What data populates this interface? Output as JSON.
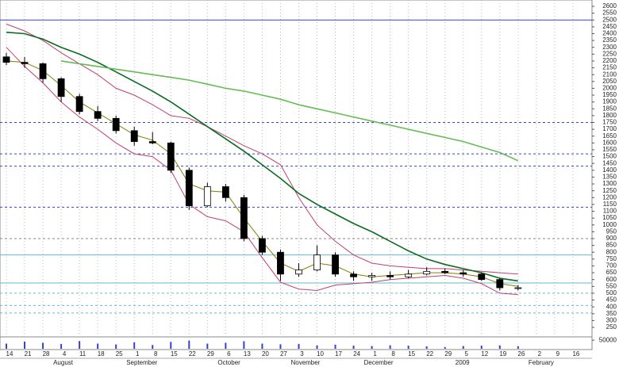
{
  "chart_data": {
    "type": "candlestick",
    "categories": [
      "14",
      "21",
      "28",
      "4",
      "11",
      "18",
      "25",
      "1",
      "8",
      "15",
      "22",
      "29",
      "6",
      "13",
      "20",
      "27",
      "3",
      "10",
      "17",
      "24",
      "1",
      "8",
      "15",
      "22",
      "29",
      "5",
      "12",
      "19",
      "26",
      "2",
      "9",
      "16"
    ],
    "month_labels": [
      null,
      null,
      null,
      "August",
      null,
      null,
      null,
      "September",
      null,
      null,
      null,
      null,
      "October",
      null,
      null,
      null,
      "November",
      null,
      null,
      null,
      "December",
      null,
      null,
      null,
      null,
      "2009",
      null,
      null,
      null,
      "February",
      null,
      null
    ],
    "open": [
      2230,
      2190,
      2180,
      2070,
      1940,
      1830,
      1780,
      1690,
      1610,
      1600,
      1400,
      1140,
      1280,
      1200,
      900,
      800,
      640,
      670,
      780,
      640,
      620,
      630,
      620,
      640,
      660,
      650,
      640,
      600,
      540,
      null,
      null,
      null
    ],
    "high": [
      2260,
      2230,
      2190,
      2080,
      1960,
      1870,
      1800,
      1720,
      1680,
      1610,
      1420,
      1310,
      1300,
      1220,
      920,
      820,
      720,
      850,
      800,
      660,
      650,
      660,
      670,
      690,
      680,
      670,
      650,
      610,
      560,
      null,
      null,
      null
    ],
    "low": [
      2170,
      2150,
      2040,
      1900,
      1810,
      1760,
      1670,
      1580,
      1590,
      1380,
      1110,
      1130,
      1170,
      880,
      780,
      590,
      620,
      660,
      620,
      590,
      590,
      600,
      610,
      630,
      640,
      620,
      590,
      520,
      520,
      null,
      null,
      null
    ],
    "close": [
      2190,
      2180,
      2070,
      1940,
      1830,
      1780,
      1690,
      1610,
      1600,
      1400,
      1140,
      1280,
      1200,
      900,
      800,
      640,
      670,
      780,
      640,
      620,
      630,
      620,
      640,
      660,
      650,
      640,
      600,
      540,
      540,
      null,
      null,
      null
    ],
    "up_color": "#ffffff",
    "down_color": "#000000",
    "series": [
      {
        "color": "#c04070",
        "values": [
          2470,
          2420,
          2350,
          2260,
          2180,
          2100,
          2000,
          1950,
          1880,
          1800,
          1780,
          1720,
          1650,
          1580,
          1520,
          1440,
          1200,
          1000,
          880,
          780,
          720,
          700,
          690,
          680,
          680,
          670,
          660,
          650,
          640,
          null,
          null,
          null
        ]
      },
      {
        "color": "#c04070",
        "values": [
          2300,
          2160,
          2040,
          1900,
          1790,
          1700,
          1600,
          1520,
          1500,
          1400,
          1150,
          1060,
          1030,
          950,
          760,
          580,
          530,
          520,
          560,
          570,
          580,
          600,
          610,
          620,
          630,
          610,
          570,
          500,
          490,
          null,
          null,
          null
        ]
      },
      {
        "color": "#808000",
        "values": [
          2200,
          2190,
          2130,
          2020,
          1900,
          1820,
          1740,
          1660,
          1620,
          1520,
          1300,
          1250,
          1240,
          1050,
          880,
          720,
          660,
          720,
          700,
          640,
          620,
          630,
          640,
          650,
          650,
          640,
          620,
          570,
          550,
          null,
          null,
          null
        ]
      },
      {
        "color": "#0b6b1e",
        "values": [
          2410,
          2400,
          2360,
          2300,
          2250,
          2190,
          2120,
          2050,
          1980,
          1900,
          1810,
          1720,
          1630,
          1540,
          1440,
          1340,
          1230,
          1150,
          1080,
          1010,
          950,
          880,
          810,
          750,
          710,
          680,
          650,
          610,
          590,
          null,
          null,
          null
        ]
      },
      {
        "color": "#66bb55",
        "values": [
          null,
          null,
          null,
          2200,
          2180,
          2160,
          2140,
          2120,
          2100,
          2080,
          2060,
          2030,
          2000,
          1980,
          1950,
          1920,
          1880,
          1850,
          1820,
          1790,
          1760,
          1730,
          1700,
          1670,
          1640,
          1610,
          1570,
          1530,
          1470,
          null,
          null,
          null
        ]
      }
    ],
    "levels": [
      {
        "value": 2500,
        "color": "#3344cc",
        "dashed": false
      },
      {
        "value": 1750,
        "color": "#3344cc",
        "dashed": true
      },
      {
        "value": 1520,
        "color": "#3344cc",
        "dashed": true
      },
      {
        "value": 1430,
        "color": "#3344cc",
        "dashed": true
      },
      {
        "value": 1130,
        "color": "#3344cc",
        "dashed": true
      },
      {
        "value": 900,
        "color": "#888888",
        "dashed": true
      },
      {
        "value": 780,
        "color": "#66bbcc",
        "dashed": false
      },
      {
        "value": 575,
        "color": "#66bbcc",
        "dashed": false
      },
      {
        "value": 500,
        "color": "#66bbcc",
        "dashed": true
      },
      {
        "value": 410,
        "color": "#66bbcc",
        "dashed": true
      },
      {
        "value": 355,
        "color": "#66bbcc",
        "dashed": true
      }
    ],
    "ylim": [
      250,
      2600
    ],
    "yticks": [
      2600,
      2550,
      2500,
      2450,
      2400,
      2350,
      2300,
      2250,
      2200,
      2150,
      2100,
      2050,
      2000,
      1950,
      1900,
      1850,
      1800,
      1750,
      1700,
      1650,
      1600,
      1550,
      1500,
      1450,
      1400,
      1350,
      1300,
      1250,
      1200,
      1150,
      1100,
      1050,
      1000,
      950,
      900,
      850,
      800,
      750,
      700,
      650,
      600,
      550,
      500,
      450,
      400,
      350,
      300,
      250
    ],
    "volume": {
      "color": "#3344cc",
      "values": [
        30000,
        42000,
        35000,
        28000,
        45000,
        30000,
        25000,
        38000,
        22000,
        40000,
        48000,
        30000,
        35000,
        44000,
        30000,
        26000,
        28000,
        20000,
        24000,
        18000,
        16000,
        20000,
        18000,
        14000,
        10000,
        16000,
        18000,
        20000,
        15000,
        null,
        null,
        null
      ],
      "ylim": [
        0,
        60000
      ],
      "yticks": [
        50000
      ]
    }
  }
}
